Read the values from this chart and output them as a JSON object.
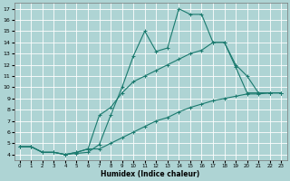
{
  "xlabel": "Humidex (Indice chaleur)",
  "bg_color": "#aed4d4",
  "grid_color": "#ffffff",
  "line_color": "#1a7a6e",
  "xlim": [
    -0.5,
    23.5
  ],
  "ylim": [
    3.5,
    17.5
  ],
  "xticks": [
    0,
    1,
    2,
    3,
    4,
    5,
    6,
    7,
    8,
    9,
    10,
    11,
    12,
    13,
    14,
    15,
    16,
    17,
    18,
    19,
    20,
    21,
    22,
    23
  ],
  "yticks": [
    4,
    5,
    6,
    7,
    8,
    9,
    10,
    11,
    12,
    13,
    14,
    15,
    16,
    17
  ],
  "line1_x": [
    0,
    1,
    2,
    3,
    4,
    5,
    6,
    7,
    8,
    9,
    10,
    11,
    12,
    13,
    14,
    15,
    16,
    17,
    18,
    19,
    20,
    21,
    22,
    23
  ],
  "line1_y": [
    4.7,
    4.7,
    4.2,
    4.2,
    4.0,
    4.1,
    4.2,
    4.9,
    7.5,
    10.0,
    12.8,
    15.0,
    13.2,
    13.5,
    17.0,
    16.5,
    16.5,
    14.0,
    14.0,
    12.0,
    11.0,
    9.5,
    9.5,
    9.5
  ],
  "line2_x": [
    0,
    1,
    2,
    3,
    4,
    5,
    6,
    7,
    8,
    9,
    10,
    11,
    12,
    13,
    14,
    15,
    16,
    17,
    18,
    19,
    20,
    21,
    22,
    23
  ],
  "line2_y": [
    4.7,
    4.7,
    4.2,
    4.2,
    4.0,
    4.2,
    4.5,
    7.5,
    8.2,
    9.5,
    10.5,
    11.0,
    11.5,
    12.0,
    12.5,
    13.0,
    13.3,
    14.0,
    14.0,
    11.8,
    9.5,
    9.5,
    9.5,
    9.5
  ],
  "line3_x": [
    0,
    1,
    2,
    3,
    4,
    5,
    6,
    7,
    8,
    9,
    10,
    11,
    12,
    13,
    14,
    15,
    16,
    17,
    18,
    19,
    20,
    21,
    22,
    23
  ],
  "line3_y": [
    4.7,
    4.7,
    4.2,
    4.2,
    4.0,
    4.2,
    4.5,
    4.5,
    5.0,
    5.5,
    6.0,
    6.5,
    7.0,
    7.3,
    7.8,
    8.2,
    8.5,
    8.8,
    9.0,
    9.2,
    9.4,
    9.4,
    9.5,
    9.5
  ]
}
